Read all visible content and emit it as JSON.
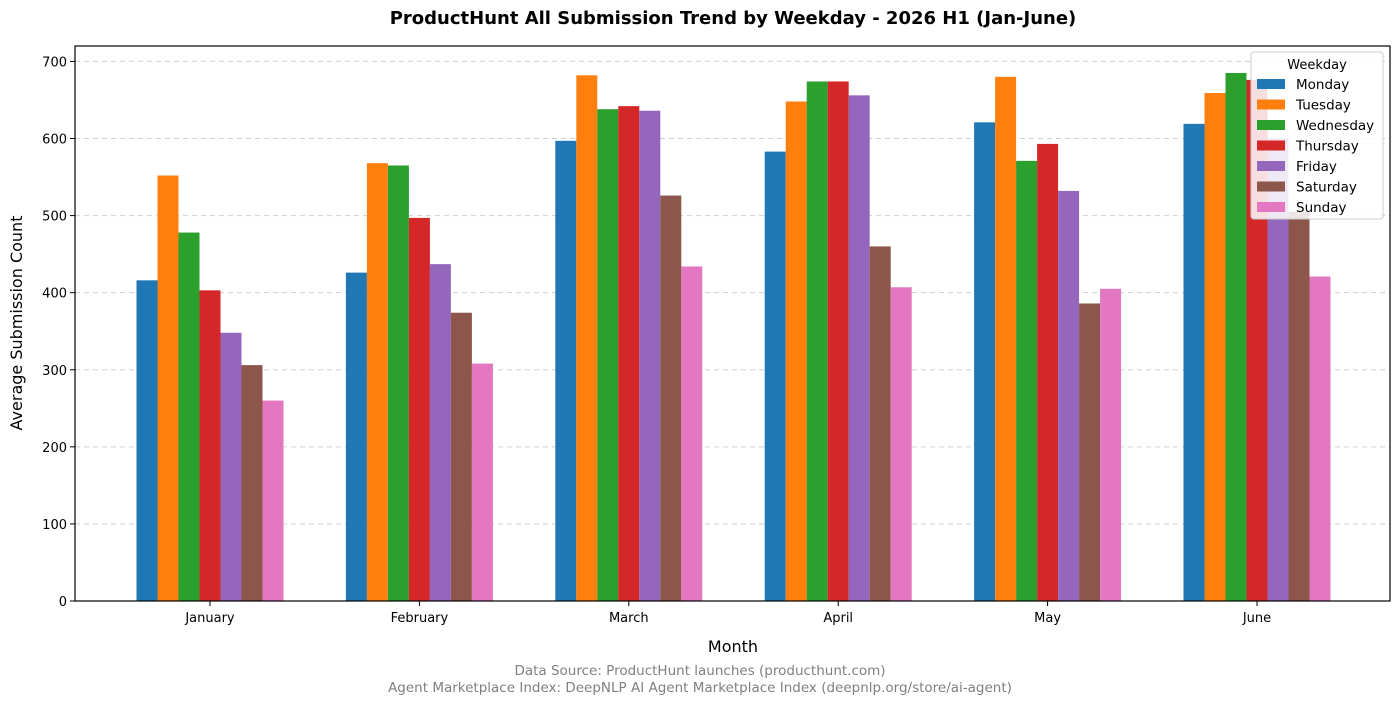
{
  "chart_data": {
    "type": "bar",
    "title": "ProductHunt All Submission Trend by Weekday - 2026 H1 (Jan-June)",
    "xlabel": "Month",
    "ylabel": "Average Submission Count",
    "categories": [
      "January",
      "February",
      "March",
      "April",
      "May",
      "June"
    ],
    "ylim": [
      0,
      720
    ],
    "yticks": [
      0,
      100,
      200,
      300,
      400,
      500,
      600,
      700
    ],
    "grid": "y-dashed",
    "legend": {
      "title": "Weekday",
      "placement": "top-right"
    },
    "series": [
      {
        "name": "Monday",
        "color": "#1f77b4",
        "values": [
          416,
          426,
          597,
          583,
          621,
          619
        ]
      },
      {
        "name": "Tuesday",
        "color": "#ff7f0e",
        "values": [
          552,
          568,
          682,
          648,
          680,
          659
        ]
      },
      {
        "name": "Wednesday",
        "color": "#2ca02c",
        "values": [
          478,
          565,
          638,
          674,
          571,
          685
        ]
      },
      {
        "name": "Thursday",
        "color": "#d62728",
        "values": [
          403,
          497,
          642,
          674,
          593,
          676
        ]
      },
      {
        "name": "Friday",
        "color": "#9467bd",
        "values": [
          348,
          437,
          636,
          656,
          532,
          600
        ]
      },
      {
        "name": "Saturday",
        "color": "#8c564b",
        "values": [
          306,
          374,
          526,
          460,
          386,
          505
        ]
      },
      {
        "name": "Sunday",
        "color": "#e377c2",
        "values": [
          260,
          308,
          434,
          407,
          405,
          421
        ]
      }
    ]
  },
  "footer": {
    "source": "Data Source: ProductHunt launches (producthunt.com)",
    "index": "Agent Marketplace Index: DeepNLP AI Agent Marketplace Index (deepnlp.org/store/ai-agent)"
  }
}
